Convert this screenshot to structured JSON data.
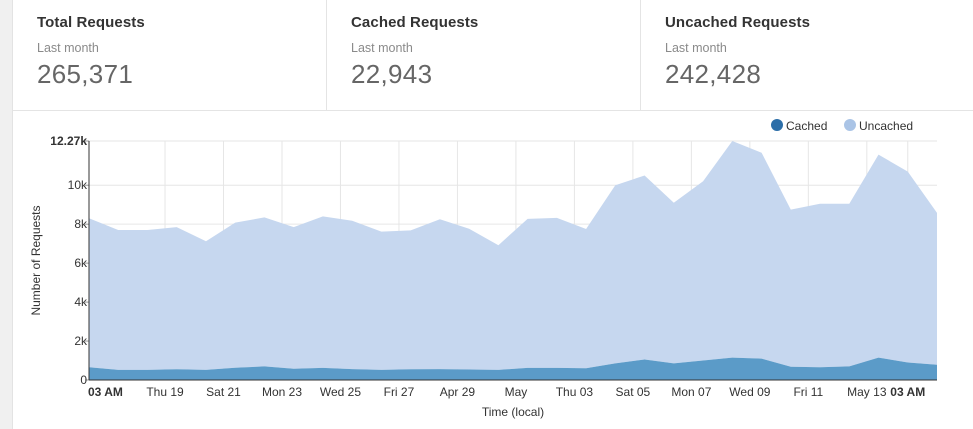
{
  "stats": {
    "total": {
      "title": "Total Requests",
      "period": "Last month",
      "value": "265,371"
    },
    "cached": {
      "title": "Cached Requests",
      "period": "Last month",
      "value": "22,943"
    },
    "uncached": {
      "title": "Uncached Requests",
      "period": "Last month",
      "value": "242,428"
    }
  },
  "colors": {
    "cached": "#5b9bc8",
    "uncached": "#c6d7ef",
    "cached_legend": "#2c6ea8",
    "uncached_legend": "#aac4e6",
    "grid": "#e6e6e6"
  },
  "chart_data": {
    "type": "area",
    "stacked": true,
    "xlabel": "Time (local)",
    "ylabel": "Number of Requests",
    "ylim": [
      0,
      12270
    ],
    "yticks": [
      {
        "value": 0,
        "label": "0"
      },
      {
        "value": 2000,
        "label": "2k"
      },
      {
        "value": 4000,
        "label": "4k"
      },
      {
        "value": 6000,
        "label": "6k"
      },
      {
        "value": 8000,
        "label": "8k"
      },
      {
        "value": 10000,
        "label": "10k"
      },
      {
        "value": 12270,
        "label": "12.27k"
      }
    ],
    "xticks": [
      {
        "index": 0,
        "label": "03 AM",
        "bold": true
      },
      {
        "index": 2.6,
        "label": "Thu 19"
      },
      {
        "index": 4.6,
        "label": "Sat 21"
      },
      {
        "index": 6.6,
        "label": "Mon 23"
      },
      {
        "index": 8.6,
        "label": "Wed 25"
      },
      {
        "index": 10.6,
        "label": "Fri 27"
      },
      {
        "index": 12.6,
        "label": "Apr 29"
      },
      {
        "index": 14.6,
        "label": "May"
      },
      {
        "index": 16.6,
        "label": "Thu 03"
      },
      {
        "index": 18.6,
        "label": "Sat 05"
      },
      {
        "index": 20.6,
        "label": "Mon 07"
      },
      {
        "index": 22.6,
        "label": "Wed 09"
      },
      {
        "index": 24.6,
        "label": "Fri 11"
      },
      {
        "index": 26.6,
        "label": "May 13"
      },
      {
        "index": 28,
        "label": "03 AM",
        "bold": true
      }
    ],
    "legend": [
      {
        "name": "Cached",
        "color": "#2c6ea8"
      },
      {
        "name": "Uncached",
        "color": "#aac4e6"
      }
    ],
    "legend_position": "top-right",
    "series": [
      {
        "name": "Cached",
        "values": [
          650,
          520,
          520,
          550,
          520,
          630,
          700,
          580,
          620,
          560,
          520,
          550,
          560,
          540,
          520,
          620,
          620,
          600,
          850,
          1050,
          850,
          1000,
          1150,
          1100,
          680,
          650,
          700,
          1150,
          900,
          780
        ]
      },
      {
        "name": "Uncached",
        "values": [
          7650,
          7180,
          7180,
          7300,
          6600,
          7450,
          7650,
          7270,
          7780,
          7620,
          7100,
          7130,
          7690,
          7230,
          6400,
          7650,
          7700,
          7150,
          9150,
          9450,
          8250,
          9200,
          11120,
          10570,
          8070,
          8400,
          8350,
          10420,
          9800,
          7800
        ]
      }
    ]
  }
}
